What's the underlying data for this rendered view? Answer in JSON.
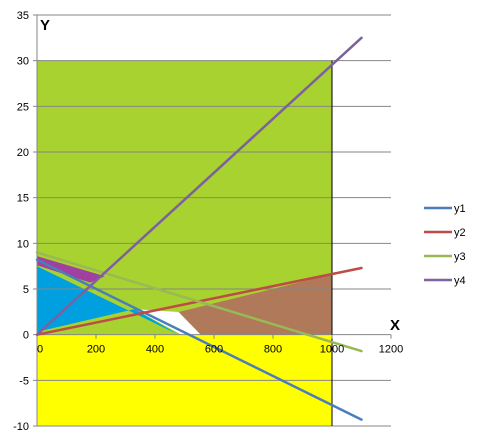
{
  "chart_data": {
    "type": "line",
    "title": "",
    "xlabel": "X",
    "ylabel": "Y",
    "xlim": [
      0,
      1200
    ],
    "ylim": [
      -10,
      35
    ],
    "x_ticks": [
      0,
      200,
      400,
      600,
      800,
      1000,
      1200
    ],
    "y_ticks": [
      -10,
      -5,
      0,
      5,
      10,
      15,
      20,
      25,
      30,
      35
    ],
    "grid": "horizontal",
    "legend_position": "right",
    "x": [
      0,
      1100
    ],
    "series": [
      {
        "name": "y1",
        "color": "#4a7ebb",
        "values": [
          8.2,
          -9.3
        ]
      },
      {
        "name": "y2",
        "color": "#be4b48",
        "values": [
          0,
          7.3
        ]
      },
      {
        "name": "y3",
        "color": "#98b954",
        "values": [
          9,
          -1.8
        ]
      },
      {
        "name": "y4",
        "color": "#7d60a0",
        "values": [
          0,
          32.5
        ]
      }
    ],
    "regions": [
      {
        "name": "yellow-region",
        "color": "#ffff00",
        "polygon": [
          [
            0,
            0
          ],
          [
            1000,
            0
          ],
          [
            1000,
            -10
          ],
          [
            0,
            -10
          ]
        ]
      },
      {
        "name": "green-region",
        "color": "#a8d22f",
        "polygon": [
          [
            0,
            30
          ],
          [
            1000,
            30
          ],
          [
            1000,
            0
          ],
          [
            0,
            0
          ]
        ]
      },
      {
        "name": "brown-region",
        "color": "#b07a5a",
        "polygon": [
          [
            480,
            2.48
          ],
          [
            1000,
            6.6
          ],
          [
            1000,
            0
          ],
          [
            555,
            0
          ]
        ]
      },
      {
        "name": "white-region",
        "color": "#ffffff",
        "polygon": [
          [
            331,
            2.8
          ],
          [
            480,
            2.48
          ],
          [
            555,
            0
          ],
          [
            490,
            0
          ]
        ]
      },
      {
        "name": "blue-region",
        "color": "#00a0e0",
        "polygon": [
          [
            0,
            7.5
          ],
          [
            0,
            0.3
          ],
          [
            331,
            2.8
          ],
          [
            480,
            0
          ]
        ]
      },
      {
        "name": "purple-region",
        "color": "#a040a0",
        "polygon": [
          [
            0,
            8.6
          ],
          [
            230,
            6.4
          ],
          [
            180,
            5.7
          ],
          [
            0,
            7.6
          ]
        ]
      }
    ]
  }
}
